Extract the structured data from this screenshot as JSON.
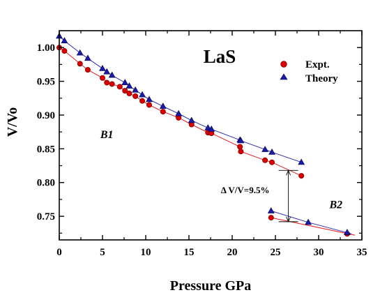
{
  "chart_data": {
    "type": "scatter",
    "title": "LaS",
    "xlabel": "Pressure GPa",
    "ylabel": "V/Vo",
    "xlim": [
      0,
      35
    ],
    "ylim": [
      0.715,
      1.025
    ],
    "x_ticks": [
      0,
      5,
      10,
      15,
      20,
      25,
      30,
      35
    ],
    "y_ticks": [
      0.75,
      0.8,
      0.85,
      0.9,
      0.95,
      1.0
    ],
    "x_tick_labels": [
      "0",
      "5",
      "10",
      "15",
      "20",
      "25",
      "30",
      "35"
    ],
    "y_tick_labels": [
      "0.75",
      "0.80",
      "0.85",
      "0.90",
      "0.95",
      "1.00"
    ],
    "legend_position": "top-right",
    "grid": false,
    "series": [
      {
        "name": "Expt.",
        "marker": "circle",
        "color": "#dd0000",
        "phase_B1": {
          "x": [
            0,
            0.6,
            2.4,
            3.3,
            5.0,
            5.5,
            6.1,
            7.0,
            7.6,
            8.1,
            8.8,
            9.6,
            10.4,
            12.0,
            13.8,
            15.3,
            17.2,
            17.6,
            20.9,
            21.0,
            23.8,
            24.6,
            28.0
          ],
          "y": [
            1.0,
            0.995,
            0.976,
            0.967,
            0.955,
            0.948,
            0.946,
            0.942,
            0.936,
            0.932,
            0.928,
            0.921,
            0.915,
            0.905,
            0.896,
            0.886,
            0.874,
            0.873,
            0.853,
            0.846,
            0.833,
            0.83,
            0.81
          ]
        },
        "phase_B2": {
          "x": [
            24.5,
            33.3
          ],
          "y": [
            0.748,
            0.724
          ]
        }
      },
      {
        "name": "Theory",
        "marker": "triangle",
        "color": "#1a1aaa",
        "phase_B1": {
          "x": [
            0,
            0.6,
            2.4,
            3.3,
            5.0,
            5.5,
            6.1,
            7.6,
            8.1,
            8.8,
            9.6,
            10.4,
            12.0,
            13.8,
            15.3,
            17.2,
            17.6,
            20.9,
            21.0,
            23.8,
            24.6,
            28.0
          ],
          "y": [
            1.017,
            1.01,
            0.992,
            0.984,
            0.969,
            0.964,
            0.959,
            0.948,
            0.943,
            0.937,
            0.93,
            0.923,
            0.913,
            0.902,
            0.892,
            0.881,
            0.879,
            0.863,
            0.862,
            0.849,
            0.845,
            0.83
          ]
        },
        "phase_B2": {
          "x": [
            24.5,
            28.8,
            33.3
          ],
          "y": [
            0.758,
            0.741,
            0.726
          ]
        }
      }
    ],
    "annotations": [
      {
        "text": "B1",
        "x": 5.5,
        "y": 0.866
      },
      {
        "text": "B2",
        "x": 32.0,
        "y": 0.762
      },
      {
        "text": "Δ V/V=9.5%",
        "x": 21.5,
        "y": 0.784
      }
    ],
    "arrow": {
      "x": 26.5,
      "y_from": 0.818,
      "y_to": 0.742
    }
  }
}
